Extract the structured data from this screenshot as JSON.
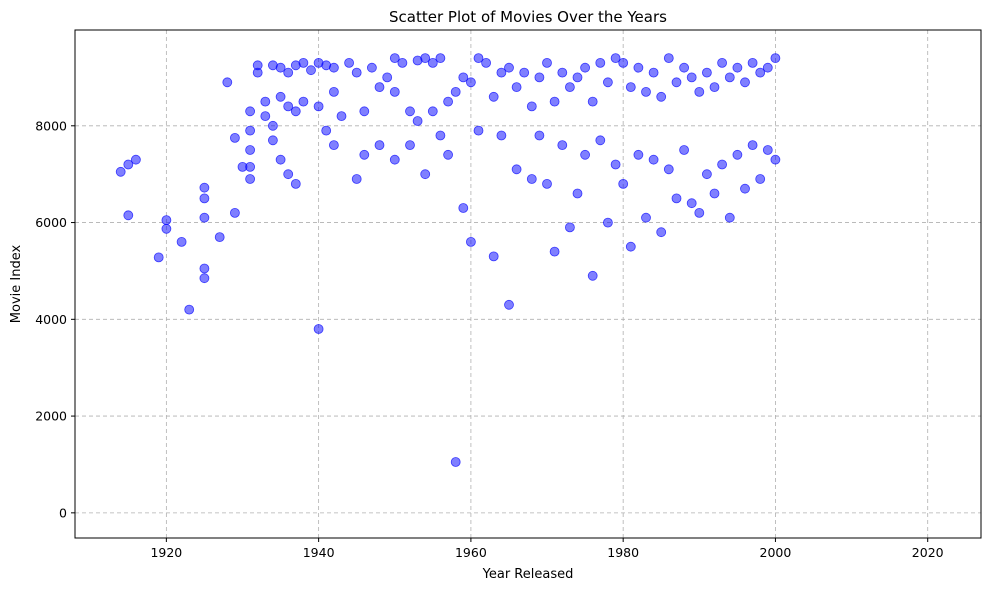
{
  "chart_data": {
    "type": "scatter",
    "title": "Scatter Plot of Movies Over the Years",
    "xlabel": "Year Released",
    "ylabel": "Movie Index",
    "xlim": [
      1908,
      2027
    ],
    "ylim": [
      -520,
      9980
    ],
    "xticks": [
      1920,
      1940,
      1960,
      1980,
      2000,
      2020
    ],
    "yticks": [
      0,
      2000,
      4000,
      6000,
      8000
    ],
    "grid": true,
    "point_color": "#0000ff",
    "point_alpha": 0.5,
    "series": [
      {
        "x": [
          1914,
          1915,
          1915,
          1916,
          1919,
          1920,
          1920,
          1922,
          1923,
          1925,
          1925,
          1925,
          1925,
          1925,
          1927,
          1928,
          1929,
          1929,
          1930,
          1931,
          1931,
          1931,
          1931,
          1931,
          1932,
          1932,
          1933,
          1933,
          1934,
          1934,
          1934,
          1935,
          1935,
          1935,
          1936,
          1936,
          1936,
          1937,
          1937,
          1937,
          1938,
          1938,
          1939,
          1940,
          1940,
          1940,
          1941,
          1941,
          1942,
          1942,
          1942,
          1943,
          1944,
          1945,
          1945,
          1946,
          1946,
          1947,
          1948,
          1948,
          1949,
          1950,
          1950,
          1950,
          1951,
          1952,
          1952,
          1953,
          1953,
          1954,
          1954,
          1955,
          1955,
          1956,
          1956,
          1957,
          1957,
          1958,
          1958,
          1959,
          1959,
          1960,
          1960,
          1961,
          1961,
          1962,
          1963,
          1963,
          1964,
          1964,
          1965,
          1965,
          1966,
          1966,
          1967,
          1968,
          1968,
          1969,
          1969,
          1970,
          1970,
          1971,
          1971,
          1972,
          1972,
          1973,
          1973,
          1974,
          1974,
          1975,
          1975,
          1976,
          1976,
          1977,
          1977,
          1978,
          1978,
          1979,
          1979,
          1980,
          1980,
          1981,
          1981,
          1982,
          1982,
          1983,
          1983,
          1984,
          1984,
          1985,
          1985,
          1986,
          1986,
          1987,
          1987,
          1988,
          1988,
          1989,
          1989,
          1990,
          1990,
          1991,
          1991,
          1992,
          1992,
          1993,
          1993,
          1994,
          1994,
          1995,
          1995,
          1996,
          1996,
          1997,
          1997,
          1998,
          1998,
          1999,
          1999,
          2000,
          2000
        ],
        "y": [
          7050,
          7200,
          6150,
          7300,
          5280,
          6050,
          5870,
          5600,
          4200,
          6720,
          6500,
          6100,
          5050,
          4850,
          5700,
          8900,
          7750,
          6200,
          7150,
          8300,
          7900,
          7500,
          7150,
          6900,
          9100,
          9250,
          8500,
          8200,
          9250,
          8000,
          7700,
          9200,
          8600,
          7300,
          9100,
          8400,
          7000,
          9250,
          8300,
          6800,
          9300,
          8500,
          9150,
          9300,
          8400,
          3800,
          9250,
          7900,
          9200,
          8700,
          7600,
          8200,
          9300,
          9100,
          6900,
          8300,
          7400,
          9200,
          8800,
          7600,
          9000,
          9400,
          8700,
          7300,
          9300,
          8300,
          7600,
          9350,
          8100,
          9400,
          7000,
          9300,
          8300,
          9400,
          7800,
          8500,
          7400,
          8700,
          1050,
          9000,
          6300,
          8900,
          5600,
          9400,
          7900,
          9300,
          8600,
          5300,
          9100,
          7800,
          9200,
          4300,
          8800,
          7100,
          9100,
          8400,
          6900,
          9000,
          7800,
          9300,
          6800,
          8500,
          5400,
          9100,
          7600,
          8800,
          5900,
          9000,
          6600,
          9200,
          7400,
          8500,
          4900,
          9300,
          7700,
          8900,
          6000,
          9400,
          7200,
          9300,
          6800,
          8800,
          5500,
          9200,
          7400,
          8700,
          6100,
          9100,
          7300,
          8600,
          5800,
          9400,
          7100,
          8900,
          6500,
          9200,
          7500,
          9000,
          6400,
          8700,
          6200,
          9100,
          7000,
          8800,
          6600,
          9300,
          7200,
          9000,
          6100,
          9200,
          7400,
          8900,
          6700,
          9300,
          7600,
          9100,
          6900,
          9200,
          7500,
          9400,
          7300
        ]
      }
    ]
  }
}
